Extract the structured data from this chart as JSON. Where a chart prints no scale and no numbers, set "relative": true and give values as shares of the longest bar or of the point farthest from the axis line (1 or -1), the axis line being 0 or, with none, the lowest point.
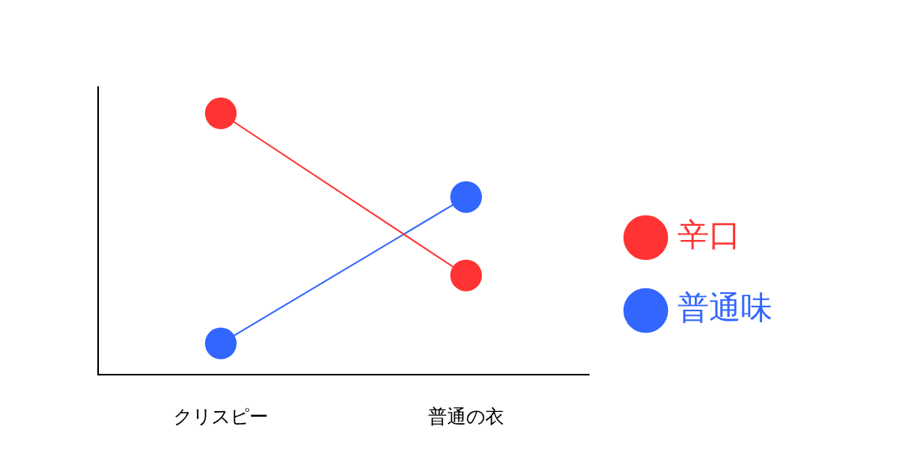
{
  "chart_data": {
    "type": "line",
    "relative": true,
    "categories": [
      "クリスピー",
      "普通の衣"
    ],
    "series": [
      {
        "name": "辛口",
        "color": "#ff3333",
        "values": [
          1,
          0.38
        ]
      },
      {
        "name": "普通味",
        "color": "#3366ff",
        "values": [
          0.12,
          0.68
        ]
      }
    ],
    "marker": "circle",
    "legend": "right",
    "grid": false
  }
}
